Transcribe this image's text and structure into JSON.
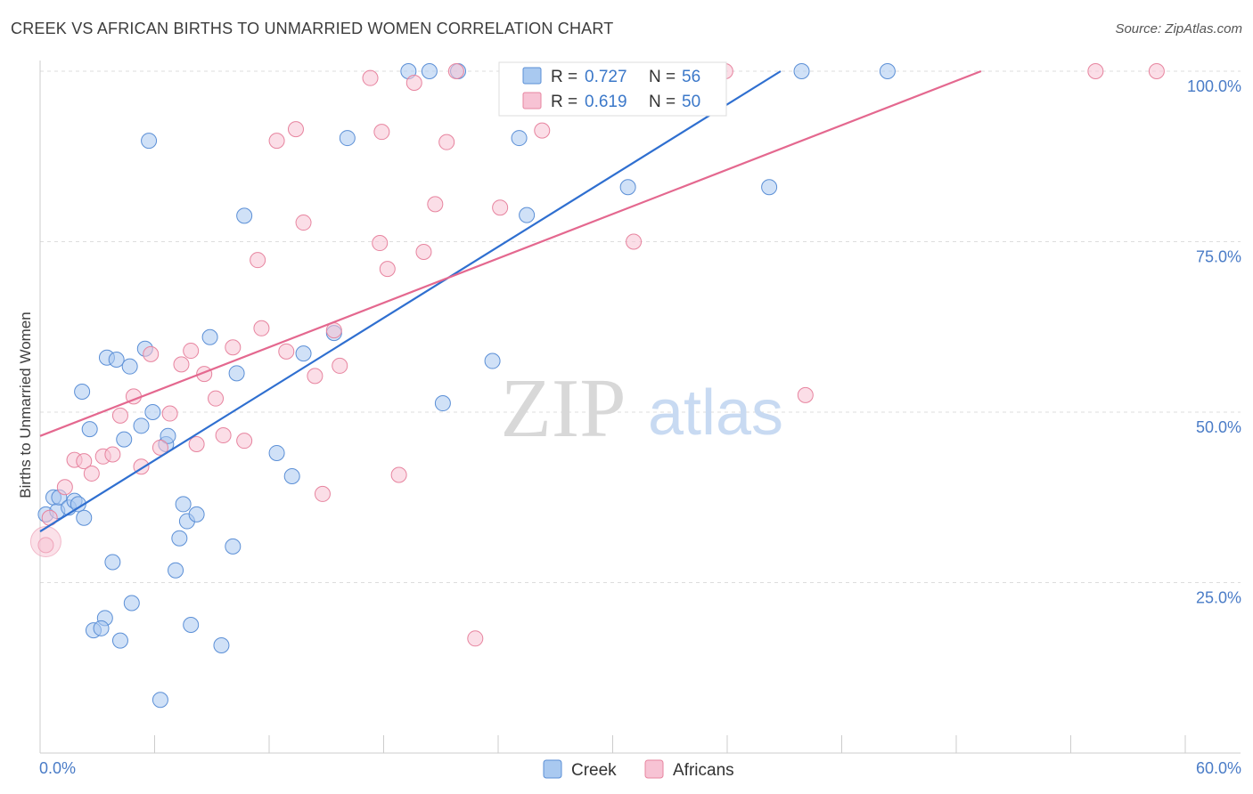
{
  "title": "CREEK VS AFRICAN BIRTHS TO UNMARRIED WOMEN CORRELATION CHART",
  "source": "Source: ZipAtlas.com",
  "watermark": {
    "zip": "ZIP",
    "atlas": "atlas"
  },
  "chart_data": {
    "type": "scatter",
    "ylabel": "Births to Unmarried Women",
    "xlim": [
      0,
      60
    ],
    "ylim": [
      0,
      100
    ],
    "x_tick_labels": [
      "0.0%",
      "60.0%"
    ],
    "y_ticks": [
      25,
      50,
      75,
      100
    ],
    "y_tick_labels": [
      "25.0%",
      "50.0%",
      "75.0%",
      "100.0%"
    ],
    "grid": true,
    "legend_position": "top-center",
    "series": [
      {
        "name": "Creek",
        "color": "#a9c9f0",
        "stroke": "#5b8fd6",
        "line_color": "#2f6fd0",
        "r": "0.727",
        "n": "56",
        "trend": {
          "x": [
            0,
            38.8
          ],
          "y": [
            32.5,
            100
          ]
        },
        "points": [
          [
            0.3,
            35
          ],
          [
            0.7,
            37.5
          ],
          [
            0.9,
            35.5
          ],
          [
            1,
            37.5
          ],
          [
            1.5,
            36
          ],
          [
            1.8,
            37
          ],
          [
            2,
            36.5
          ],
          [
            2.3,
            34.5
          ],
          [
            2.2,
            53
          ],
          [
            2.6,
            47.5
          ],
          [
            3.4,
            19.8
          ],
          [
            2.8,
            18
          ],
          [
            3.2,
            18.3
          ],
          [
            3.5,
            58
          ],
          [
            3.8,
            28
          ],
          [
            4,
            57.7
          ],
          [
            4.2,
            16.5
          ],
          [
            4.4,
            46
          ],
          [
            4.7,
            56.7
          ],
          [
            4.8,
            22
          ],
          [
            5.3,
            48
          ],
          [
            5.5,
            59.3
          ],
          [
            5.7,
            89.8
          ],
          [
            5.9,
            50
          ],
          [
            6.3,
            7.8
          ],
          [
            6.6,
            45.3
          ],
          [
            6.7,
            46.5
          ],
          [
            7.1,
            26.8
          ],
          [
            7.3,
            31.5
          ],
          [
            7.5,
            36.5
          ],
          [
            7.7,
            34
          ],
          [
            7.9,
            18.8
          ],
          [
            8.2,
            35
          ],
          [
            8.9,
            61
          ],
          [
            9.5,
            15.8
          ],
          [
            10.1,
            30.3
          ],
          [
            10.3,
            55.7
          ],
          [
            10.7,
            78.8
          ],
          [
            12.4,
            44
          ],
          [
            13.2,
            40.6
          ],
          [
            13.8,
            58.6
          ],
          [
            15.4,
            61.6
          ],
          [
            16.1,
            90.2
          ],
          [
            19.3,
            100
          ],
          [
            21.1,
            51.3
          ],
          [
            21.9,
            100
          ],
          [
            23.7,
            57.5
          ],
          [
            25.1,
            90.2
          ],
          [
            25.5,
            78.9
          ],
          [
            27.9,
            100
          ],
          [
            30.8,
            83
          ],
          [
            38.2,
            83
          ],
          [
            39.9,
            100
          ],
          [
            44.4,
            100
          ],
          [
            26.3,
            100
          ],
          [
            20.4,
            100
          ]
        ]
      },
      {
        "name": "Africans",
        "color": "#f7c3d4",
        "stroke": "#e7849f",
        "line_color": "#e4688f",
        "r": "0.619",
        "n": "50",
        "trend": {
          "x": [
            0,
            49.3
          ],
          "y": [
            46.5,
            100
          ]
        },
        "points": [
          [
            0.3,
            30.5
          ],
          [
            0.5,
            34.5
          ],
          [
            1.3,
            39
          ],
          [
            1.8,
            43
          ],
          [
            2.3,
            42.8
          ],
          [
            2.7,
            41
          ],
          [
            3.3,
            43.5
          ],
          [
            3.8,
            43.8
          ],
          [
            4.2,
            49.5
          ],
          [
            4.9,
            52.3
          ],
          [
            5.3,
            42
          ],
          [
            5.8,
            58.5
          ],
          [
            6.3,
            44.8
          ],
          [
            6.8,
            49.8
          ],
          [
            7.4,
            57
          ],
          [
            7.9,
            59
          ],
          [
            8.2,
            45.3
          ],
          [
            8.6,
            55.6
          ],
          [
            9.2,
            52
          ],
          [
            9.6,
            46.6
          ],
          [
            10.1,
            59.5
          ],
          [
            10.7,
            45.8
          ],
          [
            11.4,
            72.3
          ],
          [
            11.6,
            62.3
          ],
          [
            12.4,
            89.8
          ],
          [
            12.9,
            58.9
          ],
          [
            13.4,
            91.5
          ],
          [
            13.8,
            77.8
          ],
          [
            14.4,
            55.3
          ],
          [
            14.8,
            38
          ],
          [
            15.4,
            62
          ],
          [
            15.7,
            56.8
          ],
          [
            17.3,
            99
          ],
          [
            17.8,
            74.8
          ],
          [
            17.9,
            91.1
          ],
          [
            18.2,
            71
          ],
          [
            18.8,
            40.8
          ],
          [
            19.6,
            98.3
          ],
          [
            20.1,
            73.5
          ],
          [
            20.7,
            80.5
          ],
          [
            21.3,
            89.6
          ],
          [
            21.8,
            100
          ],
          [
            22.8,
            16.8
          ],
          [
            24.1,
            80
          ],
          [
            26.3,
            91.3
          ],
          [
            31.1,
            75
          ],
          [
            35.9,
            100
          ],
          [
            40.1,
            52.5
          ],
          [
            55.3,
            100
          ],
          [
            58.5,
            100
          ]
        ]
      }
    ]
  }
}
